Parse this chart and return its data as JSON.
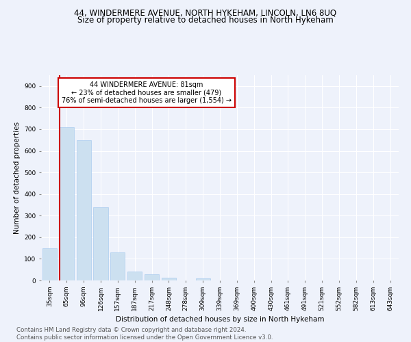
{
  "title": "44, WINDERMERE AVENUE, NORTH HYKEHAM, LINCOLN, LN6 8UQ",
  "subtitle": "Size of property relative to detached houses in North Hykeham",
  "xlabel": "Distribution of detached houses by size in North Hykeham",
  "ylabel": "Number of detached properties",
  "categories": [
    "35sqm",
    "65sqm",
    "96sqm",
    "126sqm",
    "157sqm",
    "187sqm",
    "217sqm",
    "248sqm",
    "278sqm",
    "309sqm",
    "339sqm",
    "369sqm",
    "400sqm",
    "430sqm",
    "461sqm",
    "491sqm",
    "521sqm",
    "552sqm",
    "582sqm",
    "613sqm",
    "643sqm"
  ],
  "values": [
    150,
    710,
    650,
    340,
    130,
    42,
    30,
    12,
    0,
    8,
    0,
    0,
    0,
    0,
    0,
    0,
    0,
    0,
    0,
    0,
    0
  ],
  "bar_color": "#cce0f0",
  "bar_edge_color": "#aaccee",
  "annotation_box_text": [
    "44 WINDERMERE AVENUE: 81sqm",
    "← 23% of detached houses are smaller (479)",
    "76% of semi-detached houses are larger (1,554) →"
  ],
  "annotation_box_color": "white",
  "annotation_box_edge_color": "#cc0000",
  "red_line_color": "#cc0000",
  "ylim": [
    0,
    950
  ],
  "yticks": [
    0,
    100,
    200,
    300,
    400,
    500,
    600,
    700,
    800,
    900
  ],
  "footer_line1": "Contains HM Land Registry data © Crown copyright and database right 2024.",
  "footer_line2": "Contains public sector information licensed under the Open Government Licence v3.0.",
  "background_color": "#eef2fb",
  "grid_color": "white",
  "title_fontsize": 8.5,
  "subtitle_fontsize": 8.5,
  "axis_label_fontsize": 7.5,
  "tick_fontsize": 6.5,
  "footer_fontsize": 6.2,
  "annotation_fontsize": 7.0
}
